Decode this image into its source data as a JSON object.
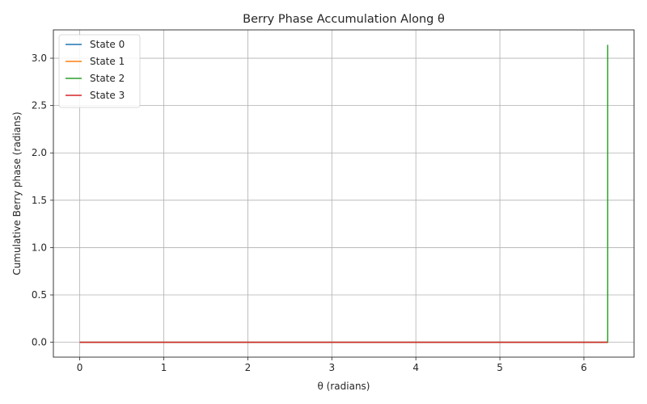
{
  "chart_data": {
    "type": "line",
    "title": "Berry Phase Accumulation Along θ",
    "xlabel": "θ (radians)",
    "ylabel": "Cumulative Berry phase (radians)",
    "xlim": [
      -0.314,
      6.597
    ],
    "ylim": [
      -0.157,
      3.299
    ],
    "xticks": [
      0,
      1,
      2,
      3,
      4,
      5,
      6
    ],
    "xtick_labels": [
      "0",
      "1",
      "2",
      "3",
      "4",
      "5",
      "6"
    ],
    "yticks": [
      0.0,
      0.5,
      1.0,
      1.5,
      2.0,
      2.5,
      3.0
    ],
    "ytick_labels": [
      "0.0",
      "0.5",
      "1.0",
      "1.5",
      "2.0",
      "2.5",
      "3.0"
    ],
    "grid": true,
    "legend_position": "upper-left",
    "series": [
      {
        "name": "State 0",
        "color": "#1f77b4",
        "x": [
          0,
          6.2832
        ],
        "y": [
          0,
          0
        ]
      },
      {
        "name": "State 1",
        "color": "#ff7f0e",
        "x": [
          0,
          6.2832
        ],
        "y": [
          0,
          0
        ]
      },
      {
        "name": "State 2",
        "color": "#2ca02c",
        "x": [
          0,
          6.2832,
          6.2832
        ],
        "y": [
          0,
          0,
          3.1416
        ]
      },
      {
        "name": "State 3",
        "color": "#d62728",
        "x": [
          0,
          6.2832
        ],
        "y": [
          0,
          0
        ]
      }
    ]
  }
}
